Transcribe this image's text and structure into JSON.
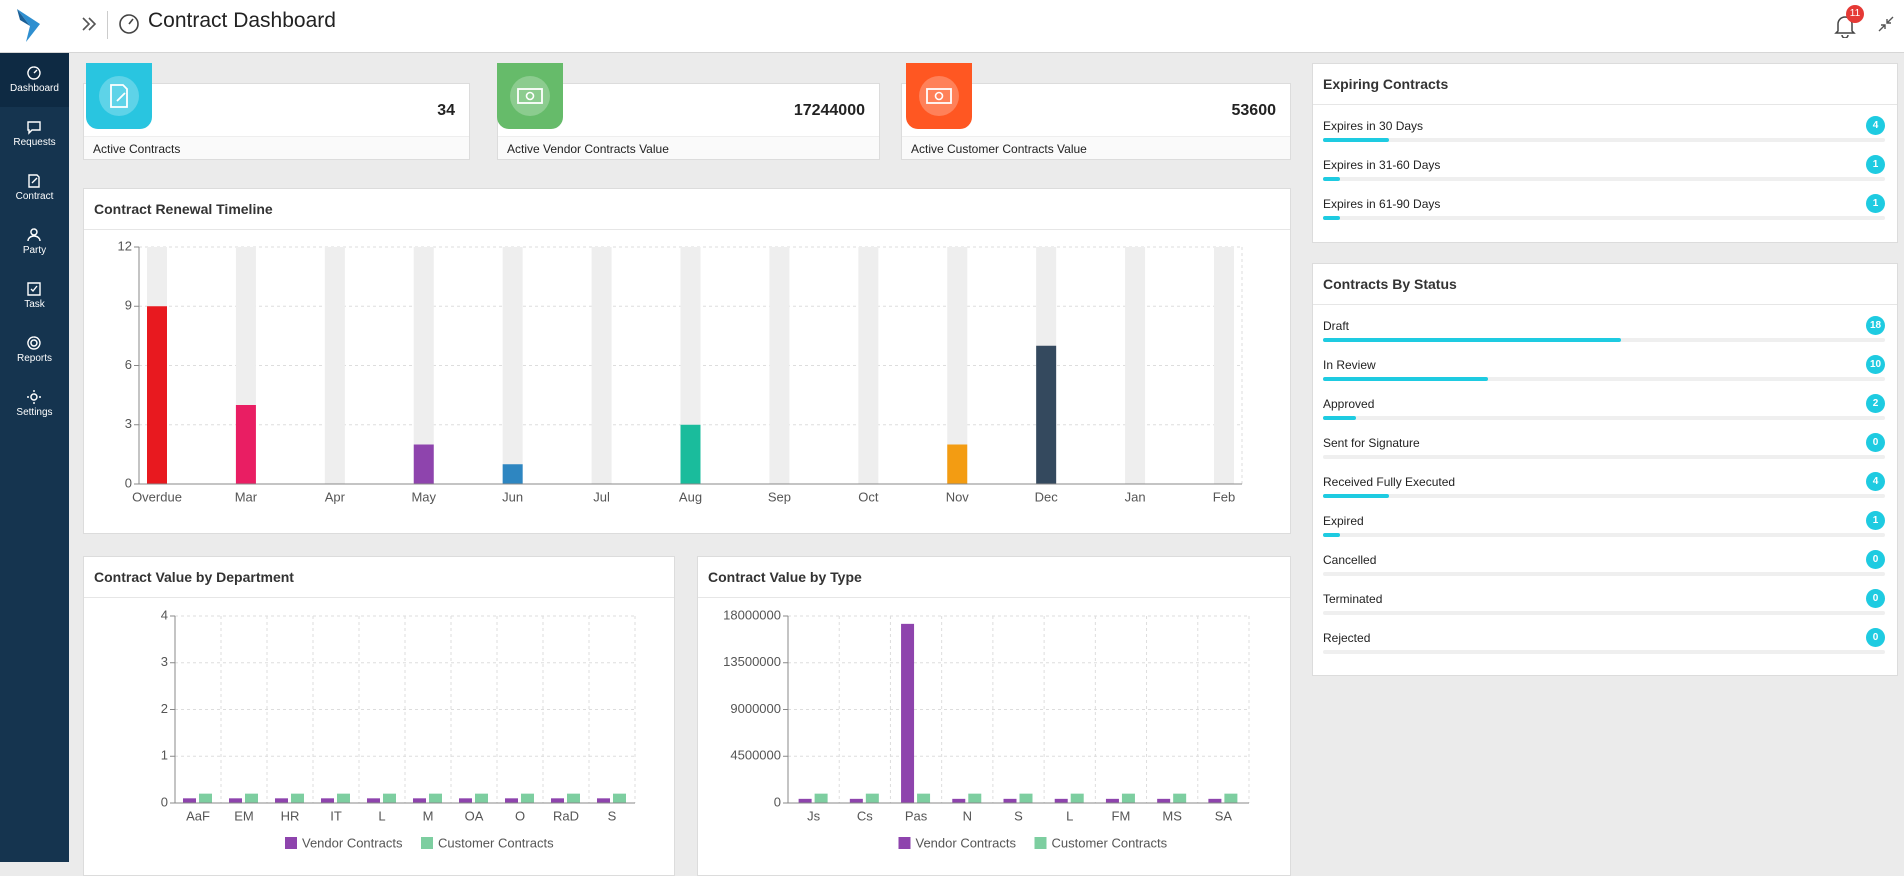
{
  "header": {
    "title": "Contract Dashboard",
    "notifications": 11
  },
  "sidebar": [
    "Dashboard",
    "Requests",
    "Contract",
    "Party",
    "Task",
    "Reports",
    "Settings"
  ],
  "kpis": [
    {
      "value": 34,
      "label": "Active Contracts",
      "color": "#29c5e0"
    },
    {
      "value": 17244000,
      "label": "Active Vendor Contracts Value",
      "color": "#66bb6a"
    },
    {
      "value": 53600,
      "label": "Active Customer Contracts Value",
      "color": "#ff5722"
    }
  ],
  "expiring": {
    "title": "Expiring Contracts",
    "items": [
      {
        "label": "Expires in 30 Days",
        "count": 4
      },
      {
        "label": "Expires in 31-60 Days",
        "count": 1
      },
      {
        "label": "Expires in 61-90 Days",
        "count": 1
      }
    ]
  },
  "status": {
    "title": "Contracts By Status",
    "items": [
      {
        "label": "Draft",
        "count": 18
      },
      {
        "label": "In Review",
        "count": 10
      },
      {
        "label": "Approved",
        "count": 2
      },
      {
        "label": "Sent for Signature",
        "count": 0
      },
      {
        "label": "Received Fully Executed",
        "count": 4
      },
      {
        "label": "Expired",
        "count": 1
      },
      {
        "label": "Cancelled",
        "count": 0
      },
      {
        "label": "Terminated",
        "count": 0
      },
      {
        "label": "Rejected",
        "count": 0
      }
    ]
  },
  "chart_data": [
    {
      "type": "bar",
      "title": "Contract Renewal Timeline",
      "categories": [
        "Overdue",
        "Mar",
        "Apr",
        "May",
        "Jun",
        "Jul",
        "Aug",
        "Sep",
        "Oct",
        "Nov",
        "Dec",
        "Jan",
        "Feb"
      ],
      "values": [
        9,
        4,
        0,
        2,
        1,
        0,
        3,
        0,
        0,
        2,
        7,
        0,
        0
      ],
      "colors": [
        "#e8191f",
        "#e91e63",
        null,
        "#8e44ad",
        "#2e86c1",
        null,
        "#1abc9c",
        null,
        null,
        "#f39c12",
        "#34495e",
        null,
        null
      ],
      "ylim": [
        0,
        12
      ],
      "yticks": [
        0,
        3,
        6,
        9,
        12
      ],
      "grid": true
    },
    {
      "type": "grouped-bar",
      "title": "Contract Value by Department",
      "categories": [
        "AaF",
        "EM",
        "HR",
        "IT",
        "L",
        "M",
        "OA",
        "O",
        "RaD",
        "S"
      ],
      "series": [
        {
          "name": "Vendor Contracts",
          "color": "#8e44ad",
          "values": [
            0.1,
            0.1,
            0.1,
            0.1,
            0.1,
            0.1,
            0.1,
            0.1,
            0.1,
            0.1
          ]
        },
        {
          "name": "Customer Contracts",
          "color": "#7dcea0",
          "values": [
            0.2,
            0.2,
            0.2,
            0.2,
            0.2,
            0.2,
            0.2,
            0.2,
            0.2,
            0.2
          ]
        }
      ],
      "ylim": [
        0,
        4
      ],
      "yticks": [
        0,
        1,
        2,
        3,
        4
      ],
      "grid": true,
      "legend": "bottom"
    },
    {
      "type": "grouped-bar",
      "title": "Contract Value by Type",
      "categories": [
        "Js",
        "Cs",
        "Pas",
        "N",
        "S",
        "L",
        "FM",
        "MS",
        "SA"
      ],
      "series": [
        {
          "name": "Vendor Contracts",
          "color": "#8e44ad",
          "values": [
            400000,
            400000,
            17244000,
            400000,
            400000,
            400000,
            400000,
            400000,
            400000
          ]
        },
        {
          "name": "Customer Contracts",
          "color": "#7dcea0",
          "values": [
            900000,
            900000,
            900000,
            900000,
            900000,
            900000,
            900000,
            900000,
            900000
          ]
        }
      ],
      "ylim": [
        0,
        18000000
      ],
      "yticks": [
        0,
        4500000,
        9000000,
        13500000,
        18000000
      ],
      "grid": true,
      "legend": "bottom"
    }
  ]
}
